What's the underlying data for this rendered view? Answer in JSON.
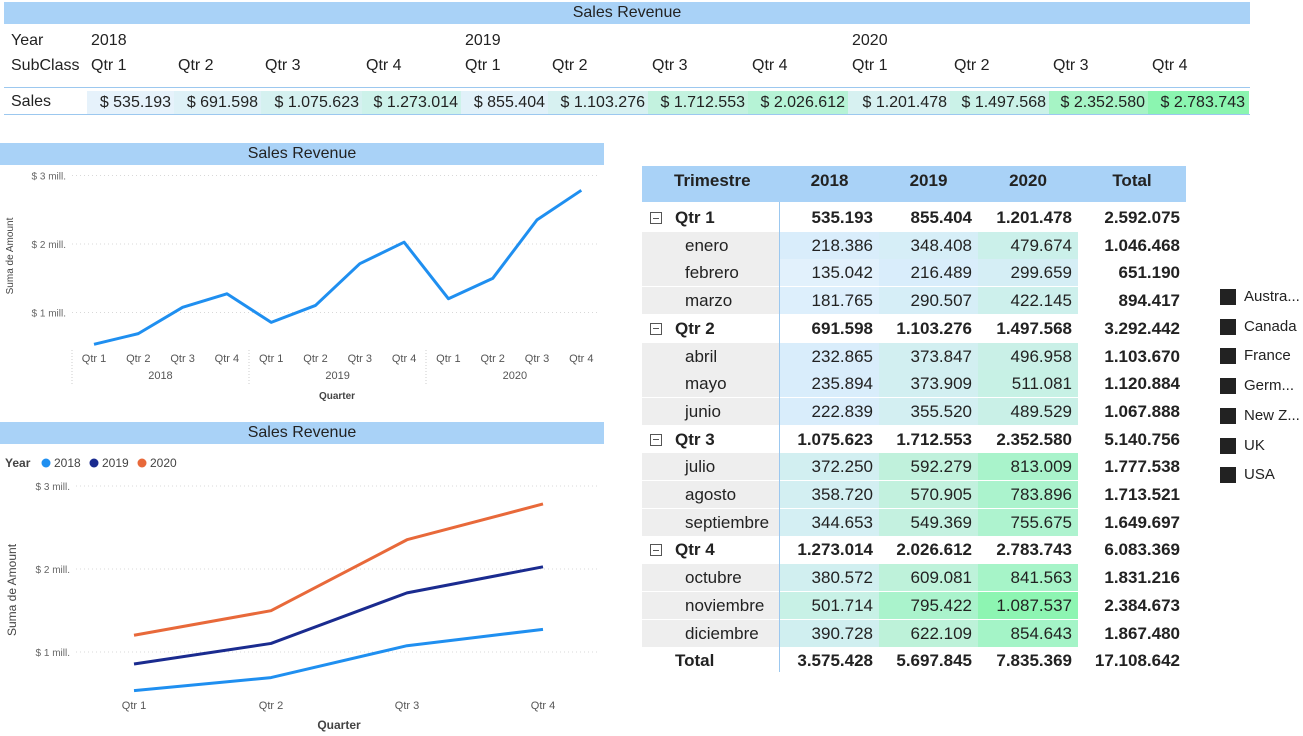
{
  "top_matrix": {
    "title": "Sales Revenue",
    "row_labels": {
      "year": "Year",
      "subclass": "SubClass",
      "sales": "Sales"
    },
    "years": [
      "2018",
      "2019",
      "2020"
    ],
    "quarters": [
      "Qtr 1",
      "Qtr 2",
      "Qtr 3",
      "Qtr 4",
      "Qtr 1",
      "Qtr 2",
      "Qtr 3",
      "Qtr 4",
      "Qtr 1",
      "Qtr 2",
      "Qtr 3",
      "Qtr 4"
    ],
    "sales": [
      "$ 535.193",
      "$ 691.598",
      "$ 1.075.623",
      "$ 1.273.014",
      "$ 855.404",
      "$ 1.103.276",
      "$ 1.712.553",
      "$ 2.026.612",
      "$ 1.201.478",
      "$ 1.497.568",
      "$ 2.352.580",
      "$ 2.783.743"
    ],
    "sales_colors": [
      "#e6f2fb",
      "#def1f7",
      "#d5f1f0",
      "#cdf2ea",
      "#e1f1f9",
      "#d7f1f1",
      "#c3f2df",
      "#b6f3d6",
      "#d7f1f1",
      "#cbf2e8",
      "#a6f4c5",
      "#8bf5b0"
    ]
  },
  "chart_data": [
    {
      "type": "line",
      "title": "Sales Revenue",
      "xlabel": "Quarter",
      "ylabel": "Suma de Amount",
      "y_ticks": [
        "$ 1 mill.",
        "$ 2 mill.",
        "$ 3 mill."
      ],
      "y_tick_values": [
        1000000,
        2000000,
        3000000
      ],
      "ylim": [
        0,
        3000000
      ],
      "x_groups": [
        "2018",
        "2019",
        "2020"
      ],
      "categories": [
        "Qtr 1",
        "Qtr 2",
        "Qtr 3",
        "Qtr 4",
        "Qtr 1",
        "Qtr 2",
        "Qtr 3",
        "Qtr 4",
        "Qtr 1",
        "Qtr 2",
        "Qtr 3",
        "Qtr 4"
      ],
      "values": [
        535193,
        691598,
        1075623,
        1273014,
        855404,
        1103276,
        1712553,
        2026612,
        1201478,
        1497568,
        2352580,
        2783743
      ],
      "color": "#1f8ff0",
      "grid": true
    },
    {
      "type": "line",
      "title": "Sales Revenue",
      "legend_title": "Year",
      "xlabel": "Quarter",
      "ylabel": "Suma de Amount",
      "y_ticks": [
        "$ 1 mill.",
        "$ 2 mill.",
        "$ 3 mill."
      ],
      "y_tick_values": [
        1000000,
        2000000,
        3000000
      ],
      "ylim": [
        0,
        3000000
      ],
      "categories": [
        "Qtr 1",
        "Qtr 2",
        "Qtr 3",
        "Qtr 4"
      ],
      "series": [
        {
          "name": "2018",
          "values": [
            535193,
            691598,
            1075623,
            1273014
          ],
          "color": "#1f8ff0"
        },
        {
          "name": "2019",
          "values": [
            855404,
            1103276,
            1712553,
            2026612
          ],
          "color": "#1a2b8f"
        },
        {
          "name": "2020",
          "values": [
            1201478,
            1497568,
            2352580,
            2783743
          ],
          "color": "#e8693a"
        }
      ],
      "legend_position": "top-left",
      "grid": true
    }
  ],
  "right_matrix": {
    "headers": [
      "Trimestre",
      "2018",
      "2019",
      "2020",
      "Total"
    ],
    "rows": [
      {
        "type": "group",
        "label": "Qtr 1",
        "v": [
          "535.193",
          "855.404",
          "1.201.478",
          "2.592.075"
        ]
      },
      {
        "type": "month",
        "label": "enero",
        "v": [
          "218.386",
          "348.408",
          "479.674",
          "1.046.468"
        ],
        "c": [
          "#d9edfb",
          "#d6eef7",
          "#cbf0ea"
        ]
      },
      {
        "type": "month",
        "label": "febrero",
        "v": [
          "135.042",
          "216.489",
          "299.659",
          "651.190"
        ],
        "c": [
          "#e2f1fc",
          "#d9edfb",
          "#d5eef5"
        ]
      },
      {
        "type": "month",
        "label": "marzo",
        "v": [
          "181.765",
          "290.507",
          "422.145",
          "894.417"
        ],
        "c": [
          "#ddeffc",
          "#d6eef7",
          "#cdf0ec"
        ]
      },
      {
        "type": "group",
        "label": "Qtr 2",
        "v": [
          "691.598",
          "1.103.276",
          "1.497.568",
          "3.292.442"
        ]
      },
      {
        "type": "month",
        "label": "abril",
        "v": [
          "232.865",
          "373.847",
          "496.958",
          "1.103.670"
        ],
        "c": [
          "#d9edfb",
          "#d2eff1",
          "#c9f0e7"
        ]
      },
      {
        "type": "month",
        "label": "mayo",
        "v": [
          "235.894",
          "373.909",
          "511.081",
          "1.120.884"
        ],
        "c": [
          "#d9edfb",
          "#d2eff1",
          "#c7f1e5"
        ]
      },
      {
        "type": "month",
        "label": "junio",
        "v": [
          "222.839",
          "355.520",
          "489.529",
          "1.067.888"
        ],
        "c": [
          "#d9edfb",
          "#d3eff2",
          "#c9f0e7"
        ]
      },
      {
        "type": "group",
        "label": "Qtr 3",
        "v": [
          "1.075.623",
          "1.712.553",
          "2.352.580",
          "5.140.756"
        ]
      },
      {
        "type": "month",
        "label": "julio",
        "v": [
          "372.250",
          "592.279",
          "813.009",
          "1.777.538"
        ],
        "c": [
          "#d2eff1",
          "#c0f1dc",
          "#a9f3cb"
        ]
      },
      {
        "type": "month",
        "label": "agosto",
        "v": [
          "358.720",
          "570.905",
          "783.896",
          "1.713.521"
        ],
        "c": [
          "#d3eff2",
          "#c2f1de",
          "#abf3cd"
        ]
      },
      {
        "type": "month",
        "label": "septiembre",
        "v": [
          "344.653",
          "549.369",
          "755.675",
          "1.649.697"
        ],
        "c": [
          "#d4eff3",
          "#c4f1e0",
          "#aef3cf"
        ]
      },
      {
        "type": "group",
        "label": "Qtr 4",
        "v": [
          "1.273.014",
          "2.026.612",
          "2.783.743",
          "6.083.369"
        ]
      },
      {
        "type": "month",
        "label": "octubre",
        "v": [
          "380.572",
          "609.081",
          "841.563",
          "1.831.216"
        ],
        "c": [
          "#d1eff0",
          "#bef2da",
          "#a6f4c8"
        ]
      },
      {
        "type": "month",
        "label": "noviembre",
        "v": [
          "501.714",
          "795.422",
          "1.087.537",
          "2.384.673"
        ],
        "c": [
          "#c8f1e6",
          "#aaf3cc",
          "#8df5b2"
        ]
      },
      {
        "type": "month",
        "label": "diciembre",
        "v": [
          "390.728",
          "622.109",
          "854.643",
          "1.867.480"
        ],
        "c": [
          "#d0eff0",
          "#bdf2d9",
          "#a4f4c7"
        ]
      },
      {
        "type": "total",
        "label": "Total",
        "v": [
          "3.575.428",
          "5.697.845",
          "7.835.369",
          "17.108.642"
        ]
      }
    ]
  },
  "country_legend": [
    "Austra...",
    "Canada",
    "France",
    "Germ...",
    "New Z...",
    "UK",
    "USA"
  ]
}
